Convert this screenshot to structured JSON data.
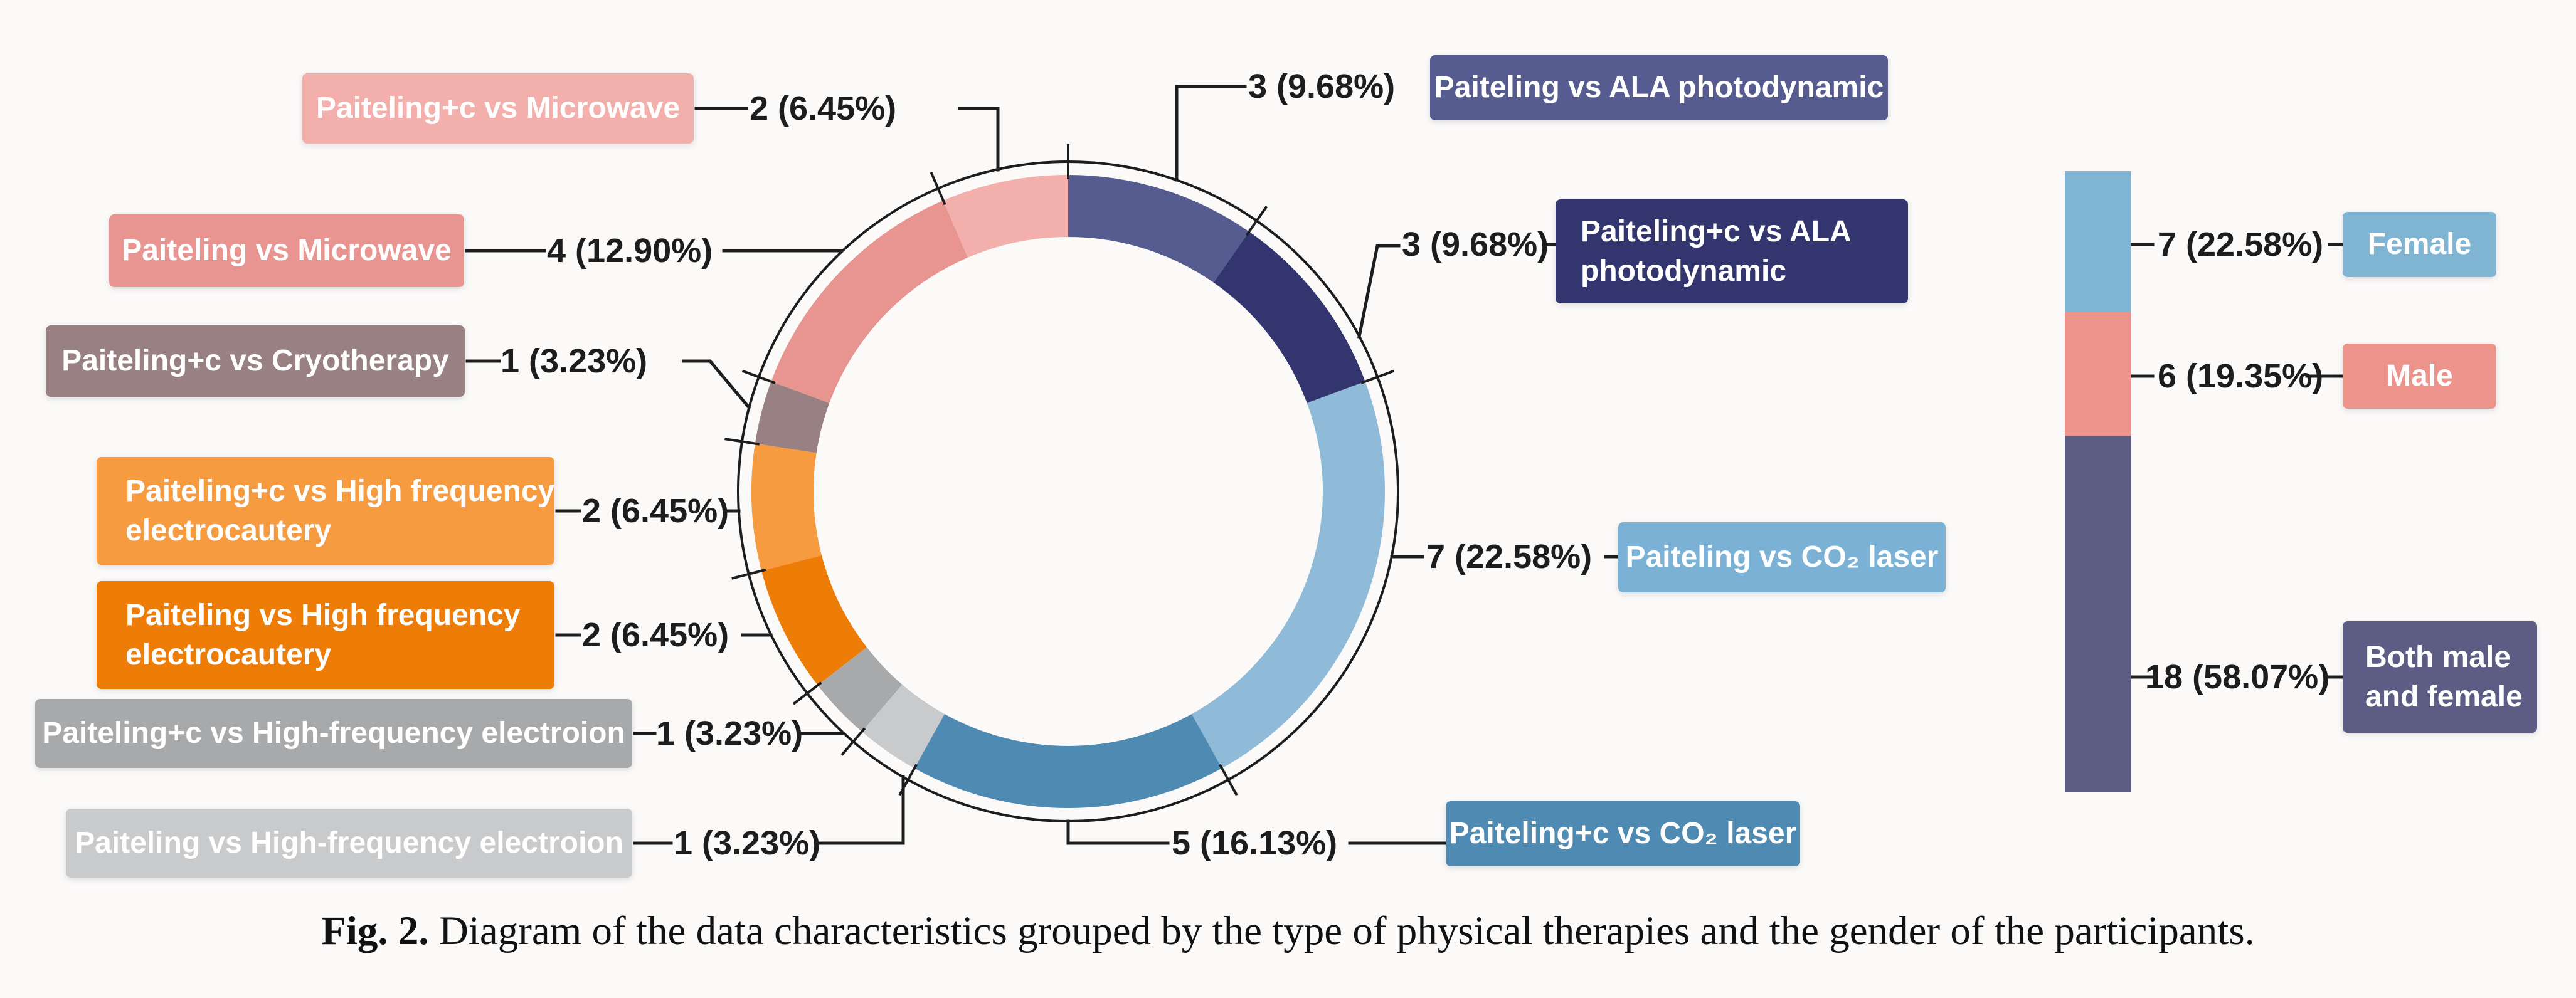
{
  "figure": {
    "caption_prefix": "Fig. 2.",
    "caption_text": " Diagram of the data characteristics grouped by the type of physical therapies and the gender of the participants."
  },
  "colors": {
    "background": "#fbfaf9",
    "line": "#1d1d1d",
    "value_text": "#1d1d1d",
    "box_text": "#ffffff"
  },
  "chart_data": [
    {
      "type": "pie",
      "subtype": "donut",
      "description": "Number of studies by type of physical therapy comparison",
      "total": 31,
      "start": "top",
      "direction": "clockwise",
      "segments": [
        {
          "label": "Paiteling vs ALA photodynamic",
          "value": 3,
          "percent": "9.68%",
          "display": "3 (9.68%)",
          "color": "#565c90"
        },
        {
          "label": "Paiteling+c vs ALA photodynamic",
          "value": 3,
          "percent": "9.68%",
          "display": "3 (9.68%)",
          "color": "#32356e",
          "lines": [
            "Paiteling+c  vs ALA",
            "photodynamic"
          ]
        },
        {
          "label": "Paiteling vs CO₂ laser",
          "value": 7,
          "percent": "22.58%",
          "display": "7 (22.58%)",
          "color": "#8fbbd9",
          "box_color": "#7cb1d6"
        },
        {
          "label": "Paiteling+c vs CO₂ laser",
          "value": 5,
          "percent": "16.13%",
          "display": "5 (16.13%)",
          "color": "#4f8ab3"
        },
        {
          "label": "Paiteling vs High-frequency electroion",
          "value": 1,
          "percent": "3.23%",
          "display": "1 (3.23%)",
          "color": "#c9cacc"
        },
        {
          "label": "Paiteling+c vs High-frequency electroion",
          "value": 1,
          "percent": "3.23%",
          "display": "1 (3.23%)",
          "color": "#a8a9ab"
        },
        {
          "label": "Paiteling vs High frequency electrocautery",
          "value": 2,
          "percent": "6.45%",
          "display": "2 (6.45%)",
          "color": "#ee7d08",
          "lines": [
            "Paiteling vs High frequency",
            "electrocautery"
          ]
        },
        {
          "label": "Paiteling+c vs High frequency electrocautery",
          "value": 2,
          "percent": "6.45%",
          "display": "2 (6.45%)",
          "color": "#f79b41",
          "lines": [
            "Paiteling+c vs High frequency",
            "electrocautery"
          ]
        },
        {
          "label": "Paiteling+c vs Cryotherapy",
          "value": 1,
          "percent": "3.23%",
          "display": "1 (3.23%)",
          "color": "#988083"
        },
        {
          "label": "Paiteling vs Microwave",
          "value": 4,
          "percent": "12.90%",
          "display": "4 (12.90%)",
          "color": "#e89490"
        },
        {
          "label": "Paiteling+c vs Microwave",
          "value": 2,
          "percent": "6.45%",
          "display": "2 (6.45%)",
          "color": "#f2afab"
        }
      ]
    },
    {
      "type": "bar",
      "subtype": "stacked_column",
      "description": "Number of studies by gender of the participants",
      "total": 31,
      "segments": [
        {
          "label": "Female",
          "value": 7,
          "percent": "22.58%",
          "display": "7 (22.58%)",
          "color": "#7fb4d2"
        },
        {
          "label": "Male",
          "value": 6,
          "percent": "19.35%",
          "display": "6 (19.35%)",
          "color": "#ec938c"
        },
        {
          "label": "Both male and female",
          "value": 18,
          "percent": "58.07%",
          "display": "18 (58.07%)",
          "color": "#5d5c84",
          "lines": [
            "Both male",
            "and female"
          ]
        }
      ]
    }
  ]
}
